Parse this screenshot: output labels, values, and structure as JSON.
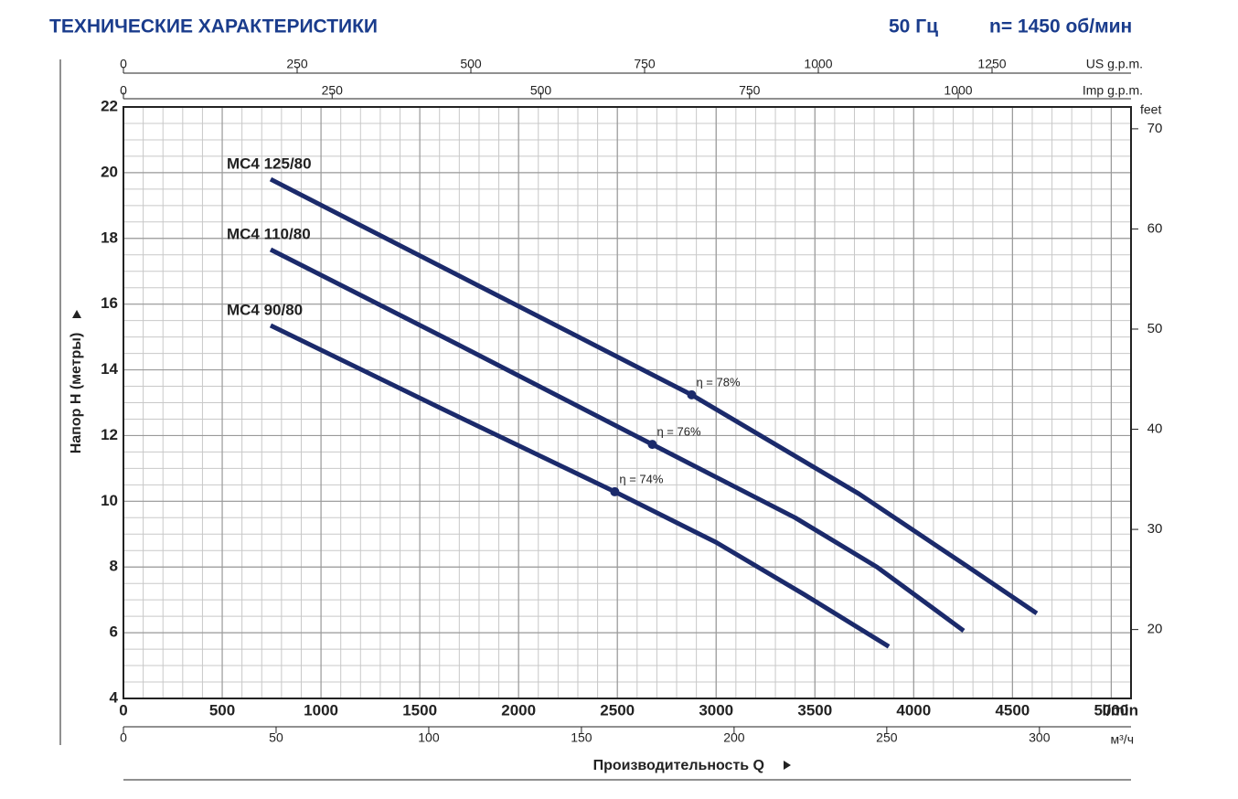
{
  "chart_data": {
    "type": "line",
    "title": "ТЕХНИЧЕСКИЕ ХАРАКТЕРИСТИКИ",
    "frequency": "50 Гц",
    "speed": "n= 1450 об/мин",
    "ylabel": "Напор Н (метры)",
    "xlabel": "Производительность Q",
    "xunit": "l/min",
    "xlim": [
      0,
      5100
    ],
    "xticks": [
      0,
      500,
      1000,
      1500,
      2000,
      2500,
      3000,
      3500,
      4000,
      4500,
      5000
    ],
    "ylim": [
      4,
      22
    ],
    "yticks": [
      4,
      6,
      8,
      10,
      12,
      14,
      16,
      18,
      20,
      22
    ],
    "y2unit": "feet",
    "y2lim": [
      13.12,
      72.18
    ],
    "y2ticks": [
      20,
      30,
      40,
      50,
      60,
      70
    ],
    "grid": true,
    "minor_grid": {
      "x_step": 100,
      "y_step": 0.5
    },
    "extra_x_axes": [
      {
        "label": "US g.p.m.",
        "position": "top",
        "lim": [
          0,
          1450
        ],
        "ticks": [
          0,
          250,
          500,
          750,
          1000,
          1250
        ]
      },
      {
        "label": "Imp g.p.m.",
        "position": "top",
        "lim": [
          0,
          1207
        ],
        "ticks": [
          0,
          250,
          500,
          750,
          1000
        ]
      },
      {
        "label": "м³/ч",
        "position": "bottom",
        "lim": [
          0,
          330
        ],
        "ticks": [
          0,
          50,
          100,
          150,
          200,
          250,
          300
        ]
      }
    ],
    "series": [
      {
        "name": "MC4 125/80",
        "color": "#1b2a6b",
        "x": [
          745,
          1800,
          2876,
          3722,
          4276,
          4623
        ],
        "values": [
          19.8,
          16.55,
          13.24,
          10.23,
          8.0,
          6.59
        ],
        "efficiency": {
          "x": 2876,
          "y": 13.24,
          "text": "η = 78%"
        }
      },
      {
        "name": "MC4 110/80",
        "color": "#1b2a6b",
        "x": [
          745,
          1700,
          2677,
          3400,
          3814,
          4253
        ],
        "values": [
          17.66,
          14.75,
          11.73,
          9.5,
          8.0,
          6.06
        ],
        "efficiency": {
          "x": 2677,
          "y": 11.73,
          "text": "η = 76%"
        }
      },
      {
        "name": "MC4 90/80",
        "color": "#1b2a6b",
        "x": [
          745,
          1600,
          2487,
          3000,
          3444,
          3874
        ],
        "values": [
          15.35,
          12.85,
          10.29,
          8.75,
          7.17,
          5.58
        ],
        "efficiency": {
          "x": 2487,
          "y": 10.29,
          "text": "η = 74%"
        }
      }
    ]
  }
}
